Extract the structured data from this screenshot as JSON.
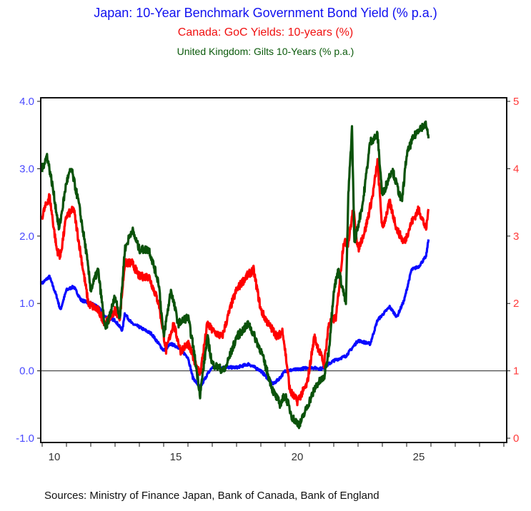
{
  "chart_data": {
    "type": "line",
    "title": "Japan: 10-Year Benchmark Government Bond Yield (% p.a.)",
    "subtitles": [
      "Canada: GoC Yields: 10-years (%)",
      "United Kingdom: Gilts 10-Years (% p.a.)"
    ],
    "source": "Sources:  Ministry of Finance Japan, Bank of Canada, Bank of England",
    "xlim": [
      2010,
      2029.1
    ],
    "x_ticks": [
      "10",
      "15",
      "20",
      "25"
    ],
    "left_axis": {
      "ylim": [
        -1.0,
        4.0
      ],
      "ticks": [
        "-1.0",
        "0.0",
        "1.0",
        "2.0",
        "3.0",
        "4.0"
      ],
      "color": "#4a4aff"
    },
    "right_axis": {
      "ylim": [
        0,
        5
      ],
      "ticks": [
        "0",
        "1",
        "2",
        "3",
        "4",
        "5"
      ],
      "color": "#ff3a3a"
    },
    "zero_line_left": 0.0,
    "series": [
      {
        "name": "Japan 10Y",
        "axis": "left",
        "color": "#0a0aff",
        "x": [
          2010.0,
          2010.3,
          2010.6,
          2010.75,
          2011.0,
          2011.3,
          2011.6,
          2012.0,
          2012.3,
          2012.6,
          2013.0,
          2013.3,
          2013.4,
          2013.7,
          2014.0,
          2014.5,
          2015.0,
          2015.3,
          2015.6,
          2016.0,
          2016.2,
          2016.5,
          2016.8,
          2017.0,
          2018.0,
          2018.5,
          2019.0,
          2019.5,
          2019.8,
          2020.0,
          2020.5,
          2021.0,
          2021.5,
          2022.0,
          2022.5,
          2023.0,
          2023.5,
          2023.8,
          2024.3,
          2024.6,
          2024.9,
          2025.2,
          2025.5,
          2025.8,
          2025.9
        ],
        "values": [
          1.3,
          1.4,
          1.1,
          0.9,
          1.2,
          1.25,
          1.05,
          1.0,
          0.95,
          0.8,
          0.75,
          0.6,
          0.85,
          0.7,
          0.65,
          0.55,
          0.3,
          0.4,
          0.35,
          0.2,
          -0.1,
          -0.25,
          -0.05,
          0.05,
          0.05,
          0.1,
          0.0,
          -0.2,
          -0.1,
          0.0,
          0.02,
          0.05,
          0.03,
          0.15,
          0.22,
          0.45,
          0.4,
          0.75,
          0.95,
          0.8,
          1.05,
          1.5,
          1.55,
          1.7,
          1.95
        ]
      },
      {
        "name": "Canada 10Y",
        "axis": "right",
        "color": "#ff0000",
        "x": [
          2010.0,
          2010.3,
          2010.6,
          2010.75,
          2011.0,
          2011.3,
          2011.6,
          2011.9,
          2012.3,
          2012.6,
          2013.0,
          2013.2,
          2013.4,
          2013.7,
          2014.0,
          2014.4,
          2014.8,
          2015.1,
          2015.4,
          2015.7,
          2016.0,
          2016.5,
          2016.8,
          2017.0,
          2017.4,
          2017.8,
          2018.0,
          2018.4,
          2018.7,
          2019.0,
          2019.3,
          2019.7,
          2019.9,
          2020.2,
          2020.5,
          2020.9,
          2021.2,
          2021.6,
          2021.8,
          2022.1,
          2022.4,
          2022.6,
          2022.8,
          2023.0,
          2023.3,
          2023.6,
          2023.8,
          2024.0,
          2024.3,
          2024.6,
          2024.9,
          2025.2,
          2025.5,
          2025.8,
          2025.9
        ],
        "values": [
          3.3,
          3.6,
          2.8,
          2.7,
          3.3,
          3.4,
          2.7,
          2.0,
          1.9,
          1.7,
          1.9,
          1.8,
          2.6,
          2.6,
          2.4,
          2.4,
          2.0,
          1.3,
          1.7,
          1.3,
          1.4,
          0.95,
          1.7,
          1.6,
          1.5,
          2.0,
          2.2,
          2.4,
          2.5,
          1.9,
          1.7,
          1.5,
          1.6,
          0.7,
          0.55,
          0.8,
          1.5,
          1.1,
          1.7,
          1.8,
          2.9,
          2.9,
          3.4,
          2.8,
          3.1,
          3.6,
          4.1,
          3.1,
          3.5,
          3.1,
          2.9,
          3.2,
          3.4,
          3.1,
          3.4
        ]
      },
      {
        "name": "UK Gilts 10Y",
        "axis": "left",
        "color": "#0a520a",
        "x": [
          2010.0,
          2010.2,
          2010.4,
          2010.7,
          2011.0,
          2011.2,
          2011.5,
          2011.8,
          2012.0,
          2012.3,
          2012.6,
          2013.0,
          2013.2,
          2013.4,
          2013.7,
          2014.0,
          2014.4,
          2014.8,
          2015.0,
          2015.3,
          2015.6,
          2016.0,
          2016.2,
          2016.5,
          2016.8,
          2017.0,
          2017.5,
          2018.0,
          2018.5,
          2019.0,
          2019.5,
          2019.8,
          2020.0,
          2020.3,
          2020.6,
          2021.0,
          2021.3,
          2021.6,
          2021.8,
          2022.0,
          2022.2,
          2022.5,
          2022.6,
          2022.75,
          2022.85,
          2023.2,
          2023.5,
          2023.8,
          2024.0,
          2024.4,
          2024.8,
          2025.0,
          2025.2,
          2025.5,
          2025.8,
          2025.9
        ],
        "values": [
          3.0,
          3.2,
          2.8,
          2.1,
          2.8,
          3.0,
          2.5,
          1.8,
          1.2,
          1.5,
          0.6,
          1.1,
          0.8,
          1.8,
          2.1,
          1.8,
          1.8,
          1.3,
          0.5,
          1.2,
          0.7,
          0.8,
          0.4,
          -0.35,
          0.5,
          0.1,
          0.0,
          0.5,
          0.7,
          0.3,
          -0.3,
          -0.5,
          -0.35,
          -0.7,
          -0.8,
          -0.45,
          -0.2,
          -0.1,
          0.3,
          1.2,
          1.5,
          1.0,
          2.6,
          3.6,
          1.9,
          2.5,
          3.4,
          3.5,
          2.6,
          3.0,
          2.5,
          3.2,
          3.4,
          3.6,
          3.65,
          3.45
        ]
      }
    ]
  }
}
